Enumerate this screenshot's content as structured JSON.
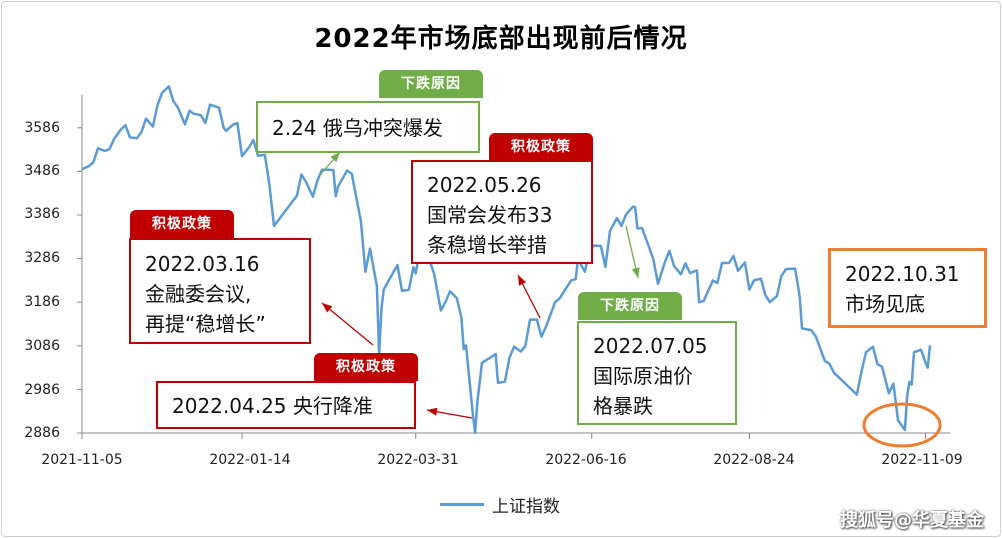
{
  "chart_data": {
    "type": "line",
    "title": "2022年市场底部出现前后情况",
    "y_ticks": [
      "3586",
      "3486",
      "3386",
      "3286",
      "3186",
      "3086",
      "2986",
      "2886"
    ],
    "x_ticks": [
      "2021-11-05",
      "2022-01-14",
      "2022-03-31",
      "2022-06-16",
      "2022-08-24",
      "2022-11-09"
    ],
    "ylim": [
      2886,
      3686
    ],
    "grid": false,
    "legend_position": "bottom",
    "series": [
      {
        "name": "上证指数",
        "color": "#5b9bd5",
        "points": [
          [
            "2021-11-05",
            3491
          ],
          [
            "2021-11-08",
            3498
          ],
          [
            "2021-11-10",
            3507
          ],
          [
            "2021-11-12",
            3539
          ],
          [
            "2021-11-15",
            3533
          ],
          [
            "2021-11-17",
            3537
          ],
          [
            "2021-11-19",
            3560
          ],
          [
            "2021-11-22",
            3582
          ],
          [
            "2021-11-24",
            3592
          ],
          [
            "2021-11-26",
            3564
          ],
          [
            "2021-11-29",
            3562
          ],
          [
            "2021-12-01",
            3576
          ],
          [
            "2021-12-03",
            3607
          ],
          [
            "2021-12-06",
            3589
          ],
          [
            "2021-12-08",
            3637
          ],
          [
            "2021-12-10",
            3666
          ],
          [
            "2021-12-13",
            3681
          ],
          [
            "2021-12-15",
            3647
          ],
          [
            "2021-12-17",
            3632
          ],
          [
            "2021-12-20",
            3594
          ],
          [
            "2021-12-22",
            3625
          ],
          [
            "2021-12-24",
            3618
          ],
          [
            "2021-12-27",
            3615
          ],
          [
            "2021-12-29",
            3597
          ],
          [
            "2021-12-31",
            3639
          ],
          [
            "2022-01-04",
            3632
          ],
          [
            "2022-01-06",
            3586
          ],
          [
            "2022-01-07",
            3579
          ],
          [
            "2022-01-10",
            3593
          ],
          [
            "2022-01-12",
            3597
          ],
          [
            "2022-01-14",
            3521
          ],
          [
            "2022-01-17",
            3541
          ],
          [
            "2022-01-19",
            3558
          ],
          [
            "2022-01-21",
            3522
          ],
          [
            "2022-01-24",
            3524
          ],
          [
            "2022-01-26",
            3455
          ],
          [
            "2022-01-28",
            3361
          ],
          [
            "2022-02-07",
            3430
          ],
          [
            "2022-02-09",
            3479
          ],
          [
            "2022-02-11",
            3462
          ],
          [
            "2022-02-14",
            3428
          ],
          [
            "2022-02-16",
            3465
          ],
          [
            "2022-02-18",
            3490
          ],
          [
            "2022-02-21",
            3490
          ],
          [
            "2022-02-23",
            3489
          ],
          [
            "2022-02-24",
            3429
          ],
          [
            "2022-02-25",
            3451
          ],
          [
            "2022-03-01",
            3488
          ],
          [
            "2022-03-03",
            3481
          ],
          [
            "2022-03-07",
            3372
          ],
          [
            "2022-03-09",
            3256
          ],
          [
            "2022-03-11",
            3309
          ],
          [
            "2022-03-14",
            3223
          ],
          [
            "2022-03-15",
            3064
          ],
          [
            "2022-03-16",
            3170
          ],
          [
            "2022-03-17",
            3215
          ],
          [
            "2022-03-21",
            3253
          ],
          [
            "2022-03-23",
            3271
          ],
          [
            "2022-03-25",
            3212
          ],
          [
            "2022-03-28",
            3215
          ],
          [
            "2022-03-30",
            3266
          ],
          [
            "2022-03-31",
            3252
          ],
          [
            "2022-04-01",
            3282
          ],
          [
            "2022-04-06",
            3283
          ],
          [
            "2022-04-08",
            3252
          ],
          [
            "2022-04-11",
            3167
          ],
          [
            "2022-04-13",
            3186
          ],
          [
            "2022-04-15",
            3211
          ],
          [
            "2022-04-18",
            3195
          ],
          [
            "2022-04-20",
            3151
          ],
          [
            "2022-04-21",
            3079
          ],
          [
            "2022-04-22",
            3087
          ],
          [
            "2022-04-25",
            2928
          ],
          [
            "2022-04-26",
            2886
          ],
          [
            "2022-04-27",
            2958
          ],
          [
            "2022-04-29",
            3047
          ],
          [
            "2022-05-05",
            3067
          ],
          [
            "2022-05-06",
            3001
          ],
          [
            "2022-05-09",
            3004
          ],
          [
            "2022-05-11",
            3058
          ],
          [
            "2022-05-13",
            3084
          ],
          [
            "2022-05-16",
            3073
          ],
          [
            "2022-05-18",
            3086
          ],
          [
            "2022-05-20",
            3146
          ],
          [
            "2022-05-23",
            3146
          ],
          [
            "2022-05-25",
            3107
          ],
          [
            "2022-05-27",
            3130
          ],
          [
            "2022-05-31",
            3186
          ],
          [
            "2022-06-02",
            3195
          ],
          [
            "2022-06-07",
            3236
          ],
          [
            "2022-06-09",
            3239
          ],
          [
            "2022-06-10",
            3284
          ],
          [
            "2022-06-13",
            3256
          ],
          [
            "2022-06-15",
            3305
          ],
          [
            "2022-06-17",
            3316
          ],
          [
            "2022-06-20",
            3315
          ],
          [
            "2022-06-22",
            3267
          ],
          [
            "2022-06-24",
            3349
          ],
          [
            "2022-06-27",
            3379
          ],
          [
            "2022-06-29",
            3361
          ],
          [
            "2022-07-01",
            3387
          ],
          [
            "2022-07-04",
            3405
          ],
          [
            "2022-07-05",
            3404
          ],
          [
            "2022-07-06",
            3355
          ],
          [
            "2022-07-08",
            3356
          ],
          [
            "2022-07-11",
            3313
          ],
          [
            "2022-07-13",
            3284
          ],
          [
            "2022-07-15",
            3228
          ],
          [
            "2022-07-18",
            3278
          ],
          [
            "2022-07-20",
            3304
          ],
          [
            "2022-07-22",
            3269
          ],
          [
            "2022-07-25",
            3250
          ],
          [
            "2022-07-27",
            3275
          ],
          [
            "2022-07-29",
            3253
          ],
          [
            "2022-08-01",
            3259
          ],
          [
            "2022-08-02",
            3186
          ],
          [
            "2022-08-04",
            3189
          ],
          [
            "2022-08-08",
            3236
          ],
          [
            "2022-08-10",
            3230
          ],
          [
            "2022-08-12",
            3276
          ],
          [
            "2022-08-15",
            3276
          ],
          [
            "2022-08-17",
            3292
          ],
          [
            "2022-08-19",
            3258
          ],
          [
            "2022-08-22",
            3277
          ],
          [
            "2022-08-24",
            3215
          ],
          [
            "2022-08-26",
            3236
          ],
          [
            "2022-08-29",
            3240
          ],
          [
            "2022-08-31",
            3202
          ],
          [
            "2022-09-02",
            3186
          ],
          [
            "2022-09-05",
            3200
          ],
          [
            "2022-09-07",
            3246
          ],
          [
            "2022-09-09",
            3262
          ],
          [
            "2022-09-13",
            3263
          ],
          [
            "2022-09-15",
            3199
          ],
          [
            "2022-09-16",
            3126
          ],
          [
            "2022-09-20",
            3122
          ],
          [
            "2022-09-22",
            3108
          ],
          [
            "2022-09-26",
            3051
          ],
          [
            "2022-09-28",
            3045
          ],
          [
            "2022-09-30",
            3024
          ],
          [
            "2022-10-10",
            2974
          ],
          [
            "2022-10-12",
            3026
          ],
          [
            "2022-10-14",
            3071
          ],
          [
            "2022-10-17",
            3084
          ],
          [
            "2022-10-19",
            3044
          ],
          [
            "2022-10-21",
            3038
          ],
          [
            "2022-10-24",
            2977
          ],
          [
            "2022-10-26",
            2999
          ],
          [
            "2022-10-28",
            2915
          ],
          [
            "2022-10-31",
            2893
          ],
          [
            "2022-11-01",
            2969
          ],
          [
            "2022-11-02",
            3003
          ],
          [
            "2022-11-03",
            2997
          ],
          [
            "2022-11-04",
            3071
          ],
          [
            "2022-11-07",
            3077
          ],
          [
            "2022-11-08",
            3064
          ],
          [
            "2022-11-09",
            3048
          ],
          [
            "2022-11-10",
            3036
          ],
          [
            "2022-11-11",
            3087
          ]
        ]
      }
    ]
  },
  "annotations": {
    "ann_224": {
      "tag": "下跌原因",
      "text": "2.24 俄乌冲突爆发"
    },
    "ann_526": {
      "tag": "积极政策",
      "lines": [
        "2022.05.26",
        "国常会发布33",
        "条稳增长举措"
      ]
    },
    "ann_316": {
      "tag": "积极政策",
      "lines": [
        "2022.03.16",
        "金融委会议,",
        "再提“稳增长”"
      ]
    },
    "ann_425": {
      "tag": "积极政策",
      "text": "2022.04.25 央行降准"
    },
    "ann_705": {
      "tag": "下跌原因",
      "lines": [
        "2022.07.05",
        "国际原油价",
        "格暴跌"
      ]
    },
    "ann_1031": {
      "lines": [
        "2022.10.31",
        "市场见底"
      ]
    }
  },
  "colors": {
    "red": "#c00000",
    "green": "#70ad47",
    "orange": "#ed7d31",
    "line": "#5b9bd5"
  },
  "watermark": "搜狐号@华夏基金"
}
